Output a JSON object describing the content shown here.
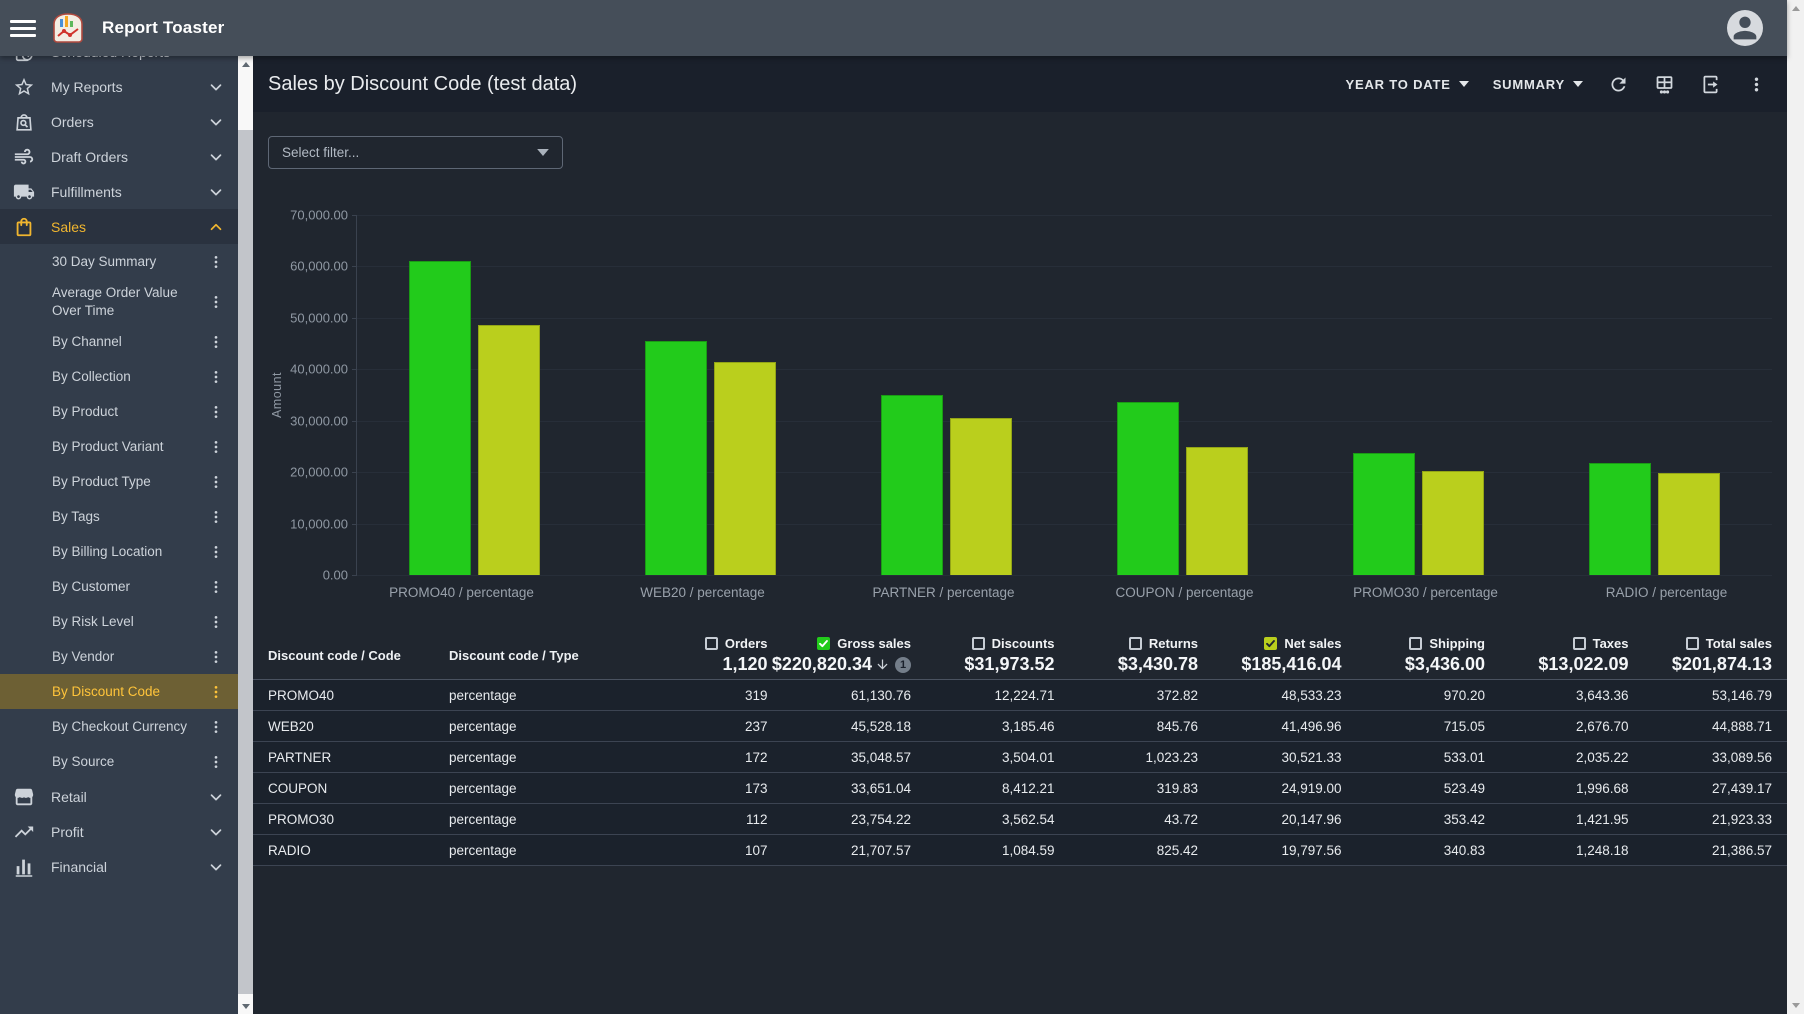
{
  "app_bar": {
    "title": "Report Toaster"
  },
  "sidebar": {
    "partial_top_item": {
      "label": "Scheduled Reports",
      "icon": "scheduled-reports-icon"
    },
    "items": [
      {
        "label": "My Reports",
        "icon": "star-icon",
        "state": "collapsed",
        "active": false
      },
      {
        "label": "Orders",
        "icon": "orders-search-icon",
        "state": "collapsed",
        "active": false
      },
      {
        "label": "Draft Orders",
        "icon": "draft-orders-icon",
        "state": "collapsed",
        "active": false
      },
      {
        "label": "Fulfillments",
        "icon": "truck-icon",
        "state": "collapsed",
        "active": false
      },
      {
        "label": "Sales",
        "icon": "shopping-bag-icon",
        "state": "expanded",
        "active": true
      }
    ],
    "sales_children": [
      "30 Day Summary",
      "Average Order Value Over Time",
      "By Channel",
      "By Collection",
      "By Product",
      "By Product Variant",
      "By Product Type",
      "By Tags",
      "By Billing Location",
      "By Customer",
      "By Risk Level",
      "By Vendor",
      "By Discount Code",
      "By Checkout Currency",
      "By Source"
    ],
    "selected_child": "By Discount Code",
    "items_after": [
      {
        "label": "Retail",
        "icon": "storefront-icon",
        "state": "collapsed",
        "active": false
      },
      {
        "label": "Profit",
        "icon": "trending-up-icon",
        "state": "collapsed",
        "active": false
      },
      {
        "label": "Financial",
        "icon": "bar-chart-icon",
        "state": "collapsed",
        "active": false
      }
    ]
  },
  "report_header": {
    "title": "Sales by Discount Code (test data)",
    "date_range_label": "YEAR TO DATE",
    "view_mode_label": "SUMMARY",
    "icon_buttons": [
      "refresh-icon",
      "table-icon",
      "export-icon",
      "more-vert-icon"
    ]
  },
  "filter": {
    "placeholder": "Select filter..."
  },
  "chart_data": {
    "type": "bar",
    "categories": [
      "PROMO40 / percentage",
      "WEB20 / percentage",
      "PARTNER / percentage",
      "COUPON / percentage",
      "PROMO30 / percentage",
      "RADIO / percentage"
    ],
    "series": [
      {
        "name": "Gross sales",
        "color": "#22cb1b",
        "border": "#1a9b15",
        "values": [
          61130.76,
          45528.18,
          35048.57,
          33651.04,
          23754.22,
          21707.57
        ]
      },
      {
        "name": "Net sales",
        "color": "#bacf1d",
        "border": "#93a417",
        "values": [
          48533.23,
          41496.96,
          30521.33,
          24919.0,
          20147.96,
          19797.56
        ]
      }
    ],
    "title": "",
    "xlabel": "",
    "ylabel": "Amount",
    "ylim": [
      0,
      70000
    ],
    "yticks": [
      {
        "label": "70,000.00",
        "value": 70000
      },
      {
        "label": "60,000.00",
        "value": 60000
      },
      {
        "label": "50,000.00",
        "value": 50000
      },
      {
        "label": "40,000.00",
        "value": 40000
      },
      {
        "label": "30,000.00",
        "value": 30000
      },
      {
        "label": "20,000.00",
        "value": 20000
      },
      {
        "label": "10,000.00",
        "value": 10000
      },
      {
        "label": "0.00",
        "value": 0
      }
    ],
    "grid": true,
    "legend": false
  },
  "table": {
    "text_columns": [
      {
        "label": "Discount code / Code"
      },
      {
        "label": "Discount code / Type"
      }
    ],
    "metric_columns": [
      {
        "label": "Orders",
        "total": "1,120",
        "checked": false
      },
      {
        "label": "Gross sales",
        "total": "$220,820.34",
        "checked": true,
        "check_color": "#22cb1b",
        "check_mark": "#ffffff",
        "sort": {
          "direction": "down",
          "priority": "1"
        }
      },
      {
        "label": "Discounts",
        "total": "$31,973.52",
        "checked": false
      },
      {
        "label": "Returns",
        "total": "$3,430.78",
        "checked": false
      },
      {
        "label": "Net sales",
        "total": "$185,416.04",
        "checked": true,
        "check_color": "#bacf1d",
        "check_mark": "#20262f"
      },
      {
        "label": "Shipping",
        "total": "$3,436.00",
        "checked": false
      },
      {
        "label": "Taxes",
        "total": "$13,022.09",
        "checked": false
      },
      {
        "label": "Total sales",
        "total": "$201,874.13",
        "checked": false
      }
    ],
    "rows": [
      {
        "code": "PROMO40",
        "type": "percentage",
        "values": [
          "319",
          "61,130.76",
          "12,224.71",
          "372.82",
          "48,533.23",
          "970.20",
          "3,643.36",
          "53,146.79"
        ]
      },
      {
        "code": "WEB20",
        "type": "percentage",
        "values": [
          "237",
          "45,528.18",
          "3,185.46",
          "845.76",
          "41,496.96",
          "715.05",
          "2,676.70",
          "44,888.71"
        ]
      },
      {
        "code": "PARTNER",
        "type": "percentage",
        "values": [
          "172",
          "35,048.57",
          "3,504.01",
          "1,023.23",
          "30,521.33",
          "533.01",
          "2,035.22",
          "33,089.56"
        ]
      },
      {
        "code": "COUPON",
        "type": "percentage",
        "values": [
          "173",
          "33,651.04",
          "8,412.21",
          "319.83",
          "24,919.00",
          "523.49",
          "1,996.68",
          "27,439.17"
        ]
      },
      {
        "code": "PROMO30",
        "type": "percentage",
        "values": [
          "112",
          "23,754.22",
          "3,562.54",
          "43.72",
          "20,147.96",
          "353.42",
          "1,421.95",
          "21,923.33"
        ]
      },
      {
        "code": "RADIO",
        "type": "percentage",
        "values": [
          "107",
          "21,707.57",
          "1,084.59",
          "825.42",
          "19,797.56",
          "340.83",
          "1,248.18",
          "21,386.57"
        ]
      }
    ]
  },
  "colors": {
    "accent_amber": "#f1b62f",
    "gross_sales_green": "#22cb1b",
    "net_sales_yellow_green": "#bacf1d",
    "selected_item_bg": "#6d6034",
    "app_bar_bg": "#454e59",
    "sidebar_bg": "#333d4b",
    "content_bg": "#20262f",
    "header_band_bg": "#1a202b"
  }
}
